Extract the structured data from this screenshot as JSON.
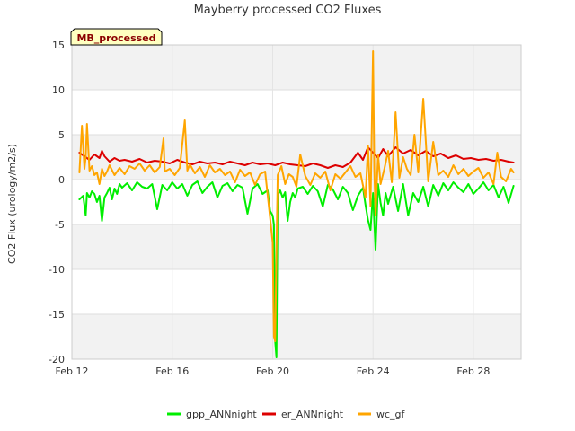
{
  "chart_data": {
    "type": "line",
    "title": "Mayberry processed CO2 Fluxes",
    "badge": "MB_processed",
    "xlabel": "",
    "ylabel": "CO2 Flux (urology/m2/s)",
    "xlim": [
      0,
      17.9
    ],
    "ylim": [
      -20,
      15
    ],
    "x_ticks": [
      {
        "value": 0,
        "label": "Feb 12"
      },
      {
        "value": 4,
        "label": "Feb 16"
      },
      {
        "value": 8,
        "label": "Feb 20"
      },
      {
        "value": 12,
        "label": "Feb 24"
      },
      {
        "value": 16,
        "label": "Feb 28"
      }
    ],
    "y_ticks": [
      {
        "value": 15,
        "label": "15"
      },
      {
        "value": 10,
        "label": "10"
      },
      {
        "value": 5,
        "label": "5"
      },
      {
        "value": 0,
        "label": "0"
      },
      {
        "value": -5,
        "label": "-5"
      },
      {
        "value": -10,
        "label": "-10"
      },
      {
        "value": -15,
        "label": "-15"
      },
      {
        "value": -20,
        "label": "-20"
      }
    ],
    "background_bands": [
      [
        10,
        15
      ],
      [
        0,
        5
      ],
      [
        -10,
        -5
      ],
      [
        -20,
        -15
      ]
    ],
    "series": [
      {
        "name": "gpp_ANNnight",
        "color": "#00ee00",
        "x": [
          0.3,
          0.45,
          0.55,
          0.6,
          0.7,
          0.8,
          0.9,
          1.0,
          1.1,
          1.2,
          1.3,
          1.4,
          1.5,
          1.6,
          1.7,
          1.8,
          1.9,
          2.0,
          2.2,
          2.4,
          2.6,
          2.8,
          3.0,
          3.2,
          3.4,
          3.6,
          3.8,
          4.0,
          4.2,
          4.4,
          4.6,
          4.8,
          5.0,
          5.2,
          5.4,
          5.6,
          5.8,
          6.0,
          6.2,
          6.4,
          6.6,
          6.8,
          7.0,
          7.2,
          7.4,
          7.6,
          7.8,
          7.9,
          8.0,
          8.05,
          8.1,
          8.15,
          8.2,
          8.3,
          8.4,
          8.5,
          8.6,
          8.7,
          8.8,
          8.9,
          9.0,
          9.2,
          9.4,
          9.6,
          9.8,
          10.0,
          10.2,
          10.4,
          10.6,
          10.8,
          11.0,
          11.2,
          11.4,
          11.6,
          11.7,
          11.8,
          11.9,
          12.0,
          12.1,
          12.2,
          12.3,
          12.4,
          12.5,
          12.6,
          12.8,
          13.0,
          13.2,
          13.4,
          13.6,
          13.8,
          14.0,
          14.2,
          14.4,
          14.6,
          14.8,
          15.0,
          15.2,
          15.4,
          15.6,
          15.8,
          16.0,
          16.2,
          16.4,
          16.6,
          16.8,
          17.0,
          17.2,
          17.4,
          17.6
        ],
        "values": [
          -2.2,
          -1.8,
          -4.0,
          -1.5,
          -2.0,
          -1.3,
          -1.6,
          -2.5,
          -1.8,
          -4.6,
          -2.0,
          -1.5,
          -0.9,
          -2.2,
          -1.0,
          -1.6,
          -0.5,
          -0.9,
          -0.4,
          -1.2,
          -0.3,
          -0.8,
          -1.0,
          -0.5,
          -3.3,
          -0.6,
          -1.2,
          -0.3,
          -1.0,
          -0.5,
          -1.8,
          -0.6,
          -0.2,
          -1.5,
          -0.8,
          -0.3,
          -2.0,
          -0.7,
          -0.4,
          -1.3,
          -0.6,
          -0.9,
          -3.8,
          -1.0,
          -0.5,
          -1.6,
          -1.2,
          -3.5,
          -4.0,
          -5.0,
          -18.0,
          -19.8,
          -1.8,
          -1.2,
          -2.0,
          -1.4,
          -4.6,
          -2.5,
          -1.5,
          -2.0,
          -1.0,
          -0.8,
          -1.6,
          -0.7,
          -1.3,
          -3.0,
          -0.6,
          -1.1,
          -2.2,
          -0.8,
          -1.5,
          -3.4,
          -1.8,
          -0.9,
          -2.8,
          -4.5,
          -5.6,
          -1.5,
          -7.8,
          -0.5,
          -2.6,
          -4.0,
          -1.5,
          -2.7,
          -0.8,
          -3.5,
          -0.5,
          -4.0,
          -1.5,
          -2.5,
          -0.8,
          -3.0,
          -0.6,
          -1.8,
          -0.4,
          -1.2,
          -0.3,
          -0.9,
          -1.4,
          -0.5,
          -1.6,
          -1.0,
          -0.3,
          -1.2,
          -0.6,
          -2.0,
          -0.8,
          -2.6,
          -0.7
        ]
      },
      {
        "name": "er_ANNnight",
        "color": "#dd0000",
        "x": [
          0.3,
          0.5,
          0.7,
          0.9,
          1.1,
          1.2,
          1.3,
          1.5,
          1.7,
          1.9,
          2.1,
          2.4,
          2.7,
          3.0,
          3.3,
          3.6,
          3.9,
          4.2,
          4.5,
          4.8,
          5.1,
          5.4,
          5.7,
          6.0,
          6.3,
          6.6,
          6.9,
          7.2,
          7.5,
          7.8,
          8.1,
          8.4,
          8.7,
          9.0,
          9.3,
          9.6,
          9.9,
          10.2,
          10.5,
          10.8,
          11.1,
          11.4,
          11.6,
          11.8,
          12.0,
          12.2,
          12.4,
          12.6,
          12.9,
          13.2,
          13.5,
          13.8,
          14.1,
          14.4,
          14.7,
          15.0,
          15.3,
          15.6,
          15.9,
          16.2,
          16.5,
          16.8,
          17.1,
          17.4,
          17.6
        ],
        "values": [
          3.0,
          2.6,
          2.2,
          2.8,
          2.4,
          3.2,
          2.6,
          2.0,
          2.4,
          2.1,
          2.2,
          2.0,
          2.3,
          1.9,
          2.1,
          2.0,
          1.8,
          2.2,
          1.9,
          1.7,
          2.0,
          1.8,
          1.9,
          1.7,
          2.0,
          1.8,
          1.6,
          1.9,
          1.7,
          1.8,
          1.6,
          1.9,
          1.7,
          1.6,
          1.5,
          1.8,
          1.6,
          1.3,
          1.6,
          1.4,
          1.9,
          3.0,
          2.2,
          3.6,
          3.0,
          2.4,
          3.4,
          2.6,
          3.6,
          2.9,
          3.3,
          2.7,
          3.2,
          2.6,
          2.9,
          2.4,
          2.7,
          2.3,
          2.4,
          2.2,
          2.3,
          2.1,
          2.2,
          2.0,
          1.9
        ]
      },
      {
        "name": "wc_gf",
        "color": "#ffa500",
        "x": [
          0.3,
          0.4,
          0.5,
          0.55,
          0.6,
          0.7,
          0.8,
          0.9,
          1.0,
          1.1,
          1.2,
          1.3,
          1.4,
          1.5,
          1.7,
          1.9,
          2.1,
          2.3,
          2.5,
          2.7,
          2.9,
          3.1,
          3.3,
          3.5,
          3.65,
          3.7,
          3.9,
          4.1,
          4.3,
          4.5,
          4.6,
          4.7,
          4.9,
          5.1,
          5.3,
          5.5,
          5.7,
          5.9,
          6.1,
          6.3,
          6.5,
          6.7,
          6.9,
          7.1,
          7.3,
          7.5,
          7.7,
          7.85,
          8.0,
          8.05,
          8.1,
          8.15,
          8.2,
          8.35,
          8.5,
          8.65,
          8.8,
          8.95,
          9.1,
          9.3,
          9.5,
          9.7,
          9.9,
          10.1,
          10.3,
          10.5,
          10.7,
          10.9,
          11.1,
          11.3,
          11.5,
          11.7,
          11.8,
          11.9,
          12.0,
          12.05,
          12.1,
          12.2,
          12.3,
          12.45,
          12.6,
          12.75,
          12.9,
          13.05,
          13.2,
          13.35,
          13.5,
          13.65,
          13.8,
          14.0,
          14.2,
          14.4,
          14.6,
          14.8,
          15.0,
          15.2,
          15.4,
          15.6,
          15.8,
          16.0,
          16.2,
          16.4,
          16.6,
          16.8,
          16.95,
          17.1,
          17.3,
          17.5,
          17.6
        ],
        "values": [
          0.8,
          6.0,
          1.2,
          2.5,
          6.2,
          1.0,
          1.5,
          0.5,
          0.8,
          -0.5,
          1.2,
          0.4,
          0.9,
          1.6,
          0.5,
          1.3,
          0.6,
          1.5,
          1.2,
          1.8,
          1.0,
          1.6,
          0.8,
          1.4,
          4.6,
          0.9,
          1.2,
          0.5,
          1.3,
          6.6,
          1.0,
          1.7,
          0.7,
          1.4,
          0.3,
          1.6,
          0.8,
          1.2,
          0.5,
          0.9,
          -0.3,
          1.1,
          0.4,
          0.8,
          -0.6,
          0.6,
          0.9,
          -3.0,
          -7.0,
          -17.5,
          -18.0,
          -8.0,
          0.5,
          1.5,
          -0.5,
          0.6,
          0.3,
          -0.8,
          2.8,
          0.4,
          -0.6,
          0.7,
          0.2,
          0.9,
          -1.2,
          0.6,
          0.1,
          0.8,
          1.5,
          0.3,
          0.7,
          -2.0,
          3.8,
          -3.0,
          14.3,
          1.2,
          -4.0,
          2.8,
          -0.5,
          1.2,
          3.2,
          -0.3,
          7.5,
          0.2,
          2.5,
          1.2,
          0.5,
          5.0,
          0.8,
          9.0,
          -0.2,
          4.2,
          0.5,
          1.0,
          0.3,
          1.6,
          0.6,
          1.2,
          0.4,
          0.9,
          1.3,
          0.2,
          0.8,
          -0.5,
          3.0,
          0.3,
          -0.2,
          1.2,
          0.8
        ]
      }
    ]
  }
}
